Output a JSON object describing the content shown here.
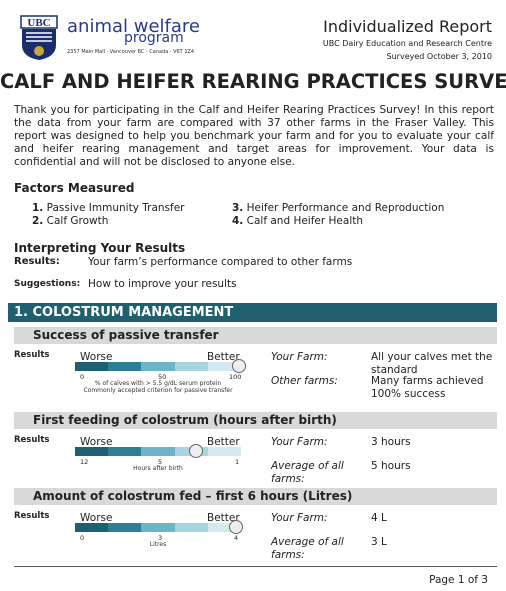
{
  "header": {
    "logo": "UBC",
    "org_line1": "animal welfare",
    "org_line2": "program",
    "address": "2357 Main Mall · Vancouver BC · Canada · V6T 1Z4",
    "report_title": "Individualized Report",
    "centre": "UBC Dairy Education and Research Centre",
    "survey_date": "Surveyed October 3, 2010"
  },
  "title": "CALF AND HEIFER REARING PRACTICES SURVEY",
  "intro": "Thank you for participating in the Calf and Heifer Rearing Practices Survey! In this report the data from your farm are compared with 37 other farms in the Fraser Valley. This report was designed to help you benchmark your farm and for you to evaluate your calf and heifer rearing management and target areas for improvement. Your data is confidential and will not be disclosed to anyone else.",
  "factors": {
    "heading": "Factors Measured",
    "items": [
      {
        "number": "1.",
        "text": "Passive Immunity Transfer"
      },
      {
        "number": "2.",
        "text": "Calf Growth"
      },
      {
        "number": "3.",
        "text": "Heifer Performance and Reproduction"
      },
      {
        "number": "4.",
        "text": "Calf and Heifer Health"
      }
    ]
  },
  "interpreting": {
    "heading": "Interpreting Your Results",
    "results_label": "Results:",
    "results_text": "Your farm’s performance compared to other farms",
    "suggestions_label": "Suggestions:",
    "suggestions_text": "How to improve your results"
  },
  "section": {
    "title": "1.  COLOSTRUM MANAGEMENT",
    "subsections": [
      {
        "title": "Success of passive transfer",
        "results_label": "Results",
        "worse": "Worse",
        "better": "Better",
        "ticks": [
          "0",
          "50",
          "100"
        ],
        "caption": [
          "% of calves with > 5.5 g/dL serum protein",
          "Commonly accepted criterion for passive transfer"
        ],
        "rows": [
          {
            "label": "Your Farm:",
            "value": "All your calves met the standard"
          },
          {
            "label": "Other farms:",
            "value": "Many farms achieved 100% success"
          }
        ]
      },
      {
        "title": "First feeding of colostrum (hours after birth)",
        "results_label": "Results",
        "worse": "Worse",
        "better": "Better",
        "ticks": [
          "12",
          "5",
          "1"
        ],
        "caption": [
          "Hours after birth"
        ],
        "rows": [
          {
            "label": "Your Farm:",
            "value": "3 hours"
          },
          {
            "label": "Average of all farms:",
            "value": "5 hours"
          }
        ]
      },
      {
        "title": "Amount of colostrum fed – first 6 hours (Litres)",
        "results_label": "Results",
        "worse": "Worse",
        "better": "Better",
        "ticks": [
          "0",
          "3",
          "4"
        ],
        "caption": [
          "Litres"
        ],
        "rows": [
          {
            "label": "Your Farm:",
            "value": "4 L"
          },
          {
            "label": "Average of all farms:",
            "value": "3 L"
          }
        ]
      }
    ]
  },
  "footer": "Page 1 of 3"
}
